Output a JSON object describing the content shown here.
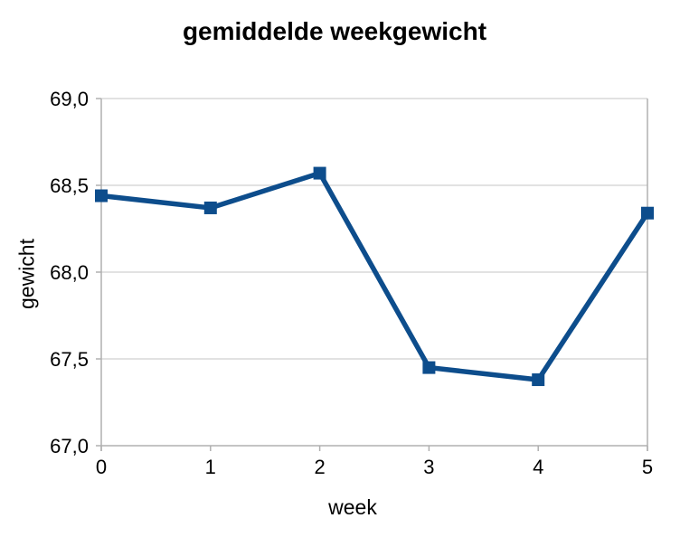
{
  "chart_data": {
    "type": "line",
    "title": "gemiddelde weekgewicht",
    "xlabel": "week",
    "ylabel": "gewicht",
    "x": [
      0,
      1,
      2,
      3,
      4,
      5
    ],
    "xtick_labels": [
      "0",
      "1",
      "2",
      "3",
      "4",
      "5"
    ],
    "series": [
      {
        "name": "gewicht",
        "values": [
          68.44,
          68.37,
          68.57,
          67.45,
          67.38,
          68.34
        ],
        "color": "#0D4D8C",
        "marker": "square"
      }
    ],
    "xlim": [
      0,
      5
    ],
    "ylim": [
      67.0,
      69.0
    ],
    "ytick_step": 0.5,
    "ytick_labels": [
      "67,0",
      "67,5",
      "68,0",
      "68,5",
      "69,0"
    ],
    "ytick_values": [
      67.0,
      67.5,
      68.0,
      68.5,
      69.0
    ],
    "grid": "horizontal-only",
    "legend": "none",
    "colors": {
      "gridline": "#D8D8D8",
      "axis": "#B0B0B0",
      "text": "#000000",
      "background": "#FFFFFF"
    }
  }
}
